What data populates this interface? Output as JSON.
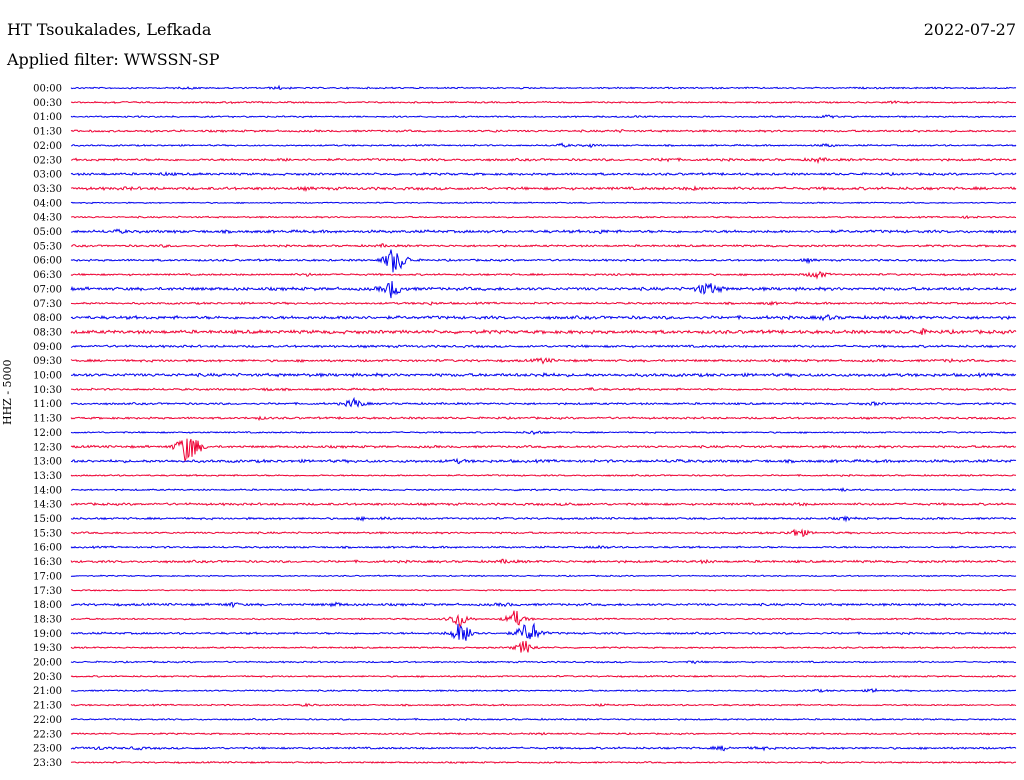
{
  "header": {
    "station": "HT Tsoukalades, Lefkada",
    "date": "2022-07-27",
    "filter": "Applied filter: WWSSN-SP"
  },
  "y_axis_label": "HHZ - 5000",
  "colors": {
    "even": "#0000ee",
    "odd": "#ee0033"
  },
  "rows": [
    {
      "time": "00:00",
      "noise": 1,
      "events": [
        [
          0.22,
          0.4
        ],
        [
          0.125,
          0.2
        ]
      ]
    },
    {
      "time": "00:30",
      "noise": 1,
      "events": [
        [
          0.05,
          0.25
        ],
        [
          0.17,
          0.2
        ],
        [
          0.87,
          0.3
        ]
      ]
    },
    {
      "time": "01:00",
      "noise": 1,
      "events": [
        [
          0.8,
          0.5
        ],
        [
          0.6,
          0.2
        ]
      ]
    },
    {
      "time": "01:30",
      "noise": 1.3,
      "events": [
        [
          0.45,
          0.2
        ],
        [
          0.58,
          0.2
        ],
        [
          0.9,
          0.2
        ]
      ]
    },
    {
      "time": "02:00",
      "noise": 1,
      "events": [
        [
          0.52,
          0.5
        ],
        [
          0.55,
          0.4
        ],
        [
          0.8,
          0.5
        ]
      ]
    },
    {
      "time": "02:30",
      "noise": 1.5,
      "events": [
        [
          0.23,
          0.3
        ],
        [
          0.63,
          0.5
        ],
        [
          0.79,
          0.6
        ]
      ]
    },
    {
      "time": "03:00",
      "noise": 1.5,
      "events": [
        [
          0.1,
          0.3
        ]
      ]
    },
    {
      "time": "03:30",
      "noise": 1.8,
      "events": [
        [
          0.06,
          0.2
        ],
        [
          0.25,
          0.2
        ],
        [
          0.66,
          0.3
        ]
      ]
    },
    {
      "time": "04:00",
      "noise": 0.8,
      "events": []
    },
    {
      "time": "04:30",
      "noise": 1,
      "events": [
        [
          0.95,
          0.3
        ]
      ]
    },
    {
      "time": "05:00",
      "noise": 1.8,
      "events": [
        [
          0.05,
          0.4
        ],
        [
          0.56,
          0.3
        ]
      ]
    },
    {
      "time": "05:30",
      "noise": 1.3,
      "events": [
        [
          0.1,
          0.2
        ],
        [
          0.33,
          0.3
        ]
      ]
    },
    {
      "time": "06:00",
      "noise": 1.3,
      "events": [
        [
          0.34,
          4
        ],
        [
          0.35,
          1.8
        ],
        [
          0.78,
          0.4
        ]
      ]
    },
    {
      "time": "06:30",
      "noise": 1.2,
      "events": [
        [
          0.25,
          0.3
        ],
        [
          0.58,
          0.3
        ],
        [
          0.79,
          1.5
        ]
      ]
    },
    {
      "time": "07:00",
      "noise": 2,
      "events": [
        [
          0.34,
          3
        ],
        [
          0.67,
          1.5
        ],
        [
          0.68,
          1.2
        ]
      ]
    },
    {
      "time": "07:30",
      "noise": 1.3,
      "events": [
        [
          0.38,
          0.3
        ],
        [
          0.74,
          0.3
        ]
      ]
    },
    {
      "time": "08:00",
      "noise": 2,
      "events": [
        [
          0.3,
          0.5
        ],
        [
          0.8,
          0.6
        ]
      ]
    },
    {
      "time": "08:30",
      "noise": 2.2,
      "events": [
        [
          0.9,
          0.6
        ]
      ]
    },
    {
      "time": "09:00",
      "noise": 1.5,
      "events": []
    },
    {
      "time": "09:30",
      "noise": 1.5,
      "events": [
        [
          0.5,
          0.8
        ],
        [
          0.93,
          0.3
        ]
      ]
    },
    {
      "time": "10:00",
      "noise": 2,
      "events": [
        [
          0.5,
          0.4
        ]
      ]
    },
    {
      "time": "10:30",
      "noise": 1.3,
      "events": [
        [
          0.21,
          0.3
        ],
        [
          0.55,
          0.3
        ]
      ]
    },
    {
      "time": "11:00",
      "noise": 1.3,
      "events": [
        [
          0.3,
          1.8
        ],
        [
          0.85,
          0.4
        ]
      ]
    },
    {
      "time": "11:30",
      "noise": 1.3,
      "events": [
        [
          0.2,
          0.3
        ]
      ]
    },
    {
      "time": "12:00",
      "noise": 1,
      "events": [
        [
          0.49,
          0.6
        ]
      ]
    },
    {
      "time": "12:30",
      "noise": 1.5,
      "events": [
        [
          0.12,
          4
        ],
        [
          0.13,
          3
        ]
      ]
    },
    {
      "time": "13:00",
      "noise": 1.8,
      "events": [
        [
          0.41,
          0.4
        ],
        [
          0.64,
          0.3
        ]
      ]
    },
    {
      "time": "13:30",
      "noise": 1,
      "events": []
    },
    {
      "time": "14:00",
      "noise": 1,
      "events": [
        [
          0.48,
          0.3
        ],
        [
          0.82,
          0.3
        ]
      ]
    },
    {
      "time": "14:30",
      "noise": 1.5,
      "events": [
        [
          0.53,
          0.4
        ],
        [
          0.77,
          0.3
        ]
      ]
    },
    {
      "time": "15:00",
      "noise": 1.3,
      "events": [
        [
          0.31,
          0.3
        ],
        [
          0.33,
          0.3
        ],
        [
          0.82,
          0.4
        ]
      ]
    },
    {
      "time": "15:30",
      "noise": 1.2,
      "events": [
        [
          0.77,
          1.8
        ]
      ]
    },
    {
      "time": "16:00",
      "noise": 1.2,
      "events": [
        [
          0.56,
          0.4
        ]
      ]
    },
    {
      "time": "16:30",
      "noise": 1.5,
      "events": [
        [
          0.46,
          0.5
        ],
        [
          0.67,
          0.3
        ]
      ]
    },
    {
      "time": "17:00",
      "noise": 0.8,
      "events": []
    },
    {
      "time": "17:30",
      "noise": 0.8,
      "events": []
    },
    {
      "time": "18:00",
      "noise": 1.5,
      "events": [
        [
          0.17,
          0.6
        ],
        [
          0.28,
          0.5
        ],
        [
          0.46,
          0.4
        ]
      ]
    },
    {
      "time": "18:30",
      "noise": 1,
      "events": [
        [
          0.41,
          3
        ],
        [
          0.47,
          3
        ]
      ]
    },
    {
      "time": "19:00",
      "noise": 1.3,
      "events": [
        [
          0.41,
          2.5
        ],
        [
          0.42,
          2
        ],
        [
          0.48,
          2.5
        ],
        [
          0.49,
          2
        ]
      ]
    },
    {
      "time": "19:30",
      "noise": 1,
      "events": [
        [
          0.48,
          2.5
        ]
      ]
    },
    {
      "time": "20:00",
      "noise": 1,
      "events": [
        [
          0.66,
          0.3
        ]
      ]
    },
    {
      "time": "20:30",
      "noise": 1,
      "events": []
    },
    {
      "time": "21:00",
      "noise": 1,
      "events": [
        [
          0.85,
          0.5
        ],
        [
          0.79,
          0.3
        ]
      ]
    },
    {
      "time": "21:30",
      "noise": 1,
      "events": [
        [
          0.25,
          0.3
        ],
        [
          0.56,
          0.2
        ]
      ]
    },
    {
      "time": "22:00",
      "noise": 1,
      "events": []
    },
    {
      "time": "22:30",
      "noise": 1,
      "events": [
        [
          0.5,
          0.2
        ]
      ]
    },
    {
      "time": "23:00",
      "noise": 1.3,
      "events": [
        [
          0.03,
          0.4
        ],
        [
          0.07,
          0.4
        ],
        [
          0.69,
          0.6
        ],
        [
          0.73,
          0.5
        ]
      ]
    },
    {
      "time": "23:30",
      "noise": 1,
      "events": []
    }
  ]
}
